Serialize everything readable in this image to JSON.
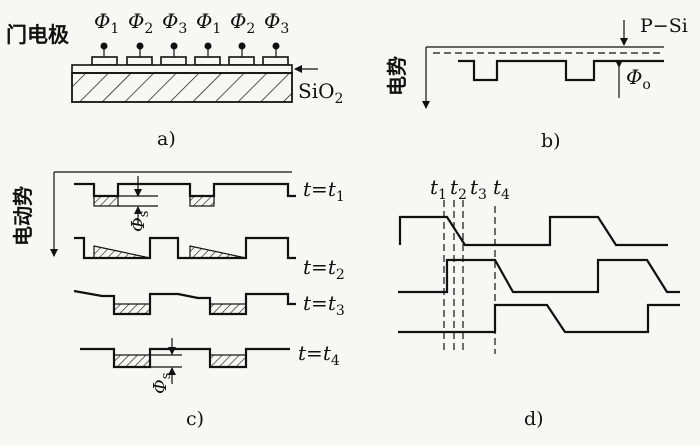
{
  "panel_a": {
    "gate_label": "门电极",
    "phases": [
      {
        "sym": "Φ",
        "sub": "1"
      },
      {
        "sym": "Φ",
        "sub": "2"
      },
      {
        "sym": "Φ",
        "sub": "3"
      },
      {
        "sym": "Φ",
        "sub": "1"
      },
      {
        "sym": "Φ",
        "sub": "2"
      },
      {
        "sym": "Φ",
        "sub": "3"
      }
    ],
    "oxide_label": "SiO",
    "oxide_sub": "2",
    "caption": "a)"
  },
  "panel_b": {
    "substrate_label": "P−Si",
    "axis_label": "电势",
    "phi_sym": "Φ",
    "phi_sub": "o",
    "caption": "b)"
  },
  "panel_c": {
    "axis_label": "电动势",
    "rows": [
      {
        "t": "t",
        "eq": "=",
        "tv": "t",
        "sub": "1"
      },
      {
        "t": "t",
        "eq": "=",
        "tv": "t",
        "sub": "2"
      },
      {
        "t": "t",
        "eq": "=",
        "tv": "t",
        "sub": "3"
      },
      {
        "t": "t",
        "eq": "=",
        "tv": "t",
        "sub": "4"
      }
    ],
    "phi_s_sym": "Φ",
    "phi_s_sub": "s",
    "caption": "c)"
  },
  "panel_d": {
    "times": [
      {
        "sym": "t",
        "sub": "1"
      },
      {
        "sym": "t",
        "sub": "2"
      },
      {
        "sym": "t",
        "sub": "3"
      },
      {
        "sym": "t",
        "sub": "4"
      }
    ],
    "caption": "d)"
  }
}
